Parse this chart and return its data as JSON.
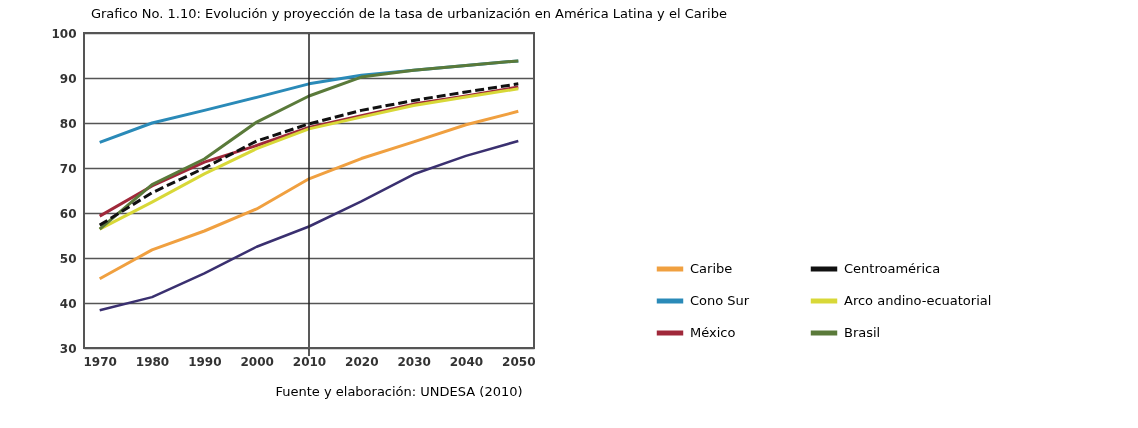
{
  "chart_data": {
    "type": "line",
    "title": "Grafico No. 1.10: Evolución y proyección de la tasa de urbanización en América Latina y el Caribe",
    "x": [
      1970,
      1980,
      1990,
      2000,
      2010,
      2020,
      2030,
      2040,
      2050
    ],
    "xlim": [
      1967,
      2053
    ],
    "xticks": [
      1970,
      1980,
      1990,
      2000,
      2010,
      2020,
      2030,
      2040,
      2050
    ],
    "ylim": [
      30,
      100
    ],
    "yticks": [
      30,
      40,
      50,
      60,
      70,
      80,
      90,
      100
    ],
    "grid": "y",
    "legend": "right",
    "line_style": "solid",
    "series": [
      {
        "name": "Caribe",
        "color": "#f0a040",
        "values": [
          45.4,
          51.8,
          56,
          60.9,
          67.6,
          72.1,
          75.8,
          79.6,
          82.6
        ]
      },
      {
        "name": "Cono Sur",
        "color": "#2a8ab8",
        "values": [
          75.7,
          80,
          82.8,
          85.7,
          88.7,
          90.6,
          91.7,
          92.8,
          93.8
        ]
      },
      {
        "name": "México",
        "color": "#a0283a",
        "values": [
          59.3,
          66,
          71.3,
          75,
          79,
          81.6,
          84.2,
          86,
          88
        ]
      },
      {
        "name": "Centroamérica",
        "color": "#111111",
        "line_style": "dashed",
        "values": [
          57.3,
          64.5,
          70,
          76,
          79.8,
          82.8,
          85,
          86.9,
          88.7
        ]
      },
      {
        "name": "Arco andino-ecuatorial",
        "color": "#d8d838",
        "values": [
          56.4,
          62.4,
          68.7,
          74.3,
          78.7,
          81.3,
          83.9,
          85.8,
          87.6
        ]
      },
      {
        "name": "Brasil",
        "color": "#5a7a3a",
        "values": [
          56.4,
          66.3,
          72,
          80.2,
          86,
          90.2,
          91.7,
          92.8,
          93.8
        ]
      },
      {
        "color": "#3a3070",
        "values": [
          38.4,
          41.3,
          46.6,
          52.5,
          57,
          62.6,
          68.6,
          72.7,
          76
        ]
      }
    ],
    "ref_lines": [
      {
        "axis": "x",
        "value": 2010,
        "color": "#222222"
      }
    ],
    "annotations": [
      "Fuente y elaboración: UNDESA (2010)"
    ]
  }
}
